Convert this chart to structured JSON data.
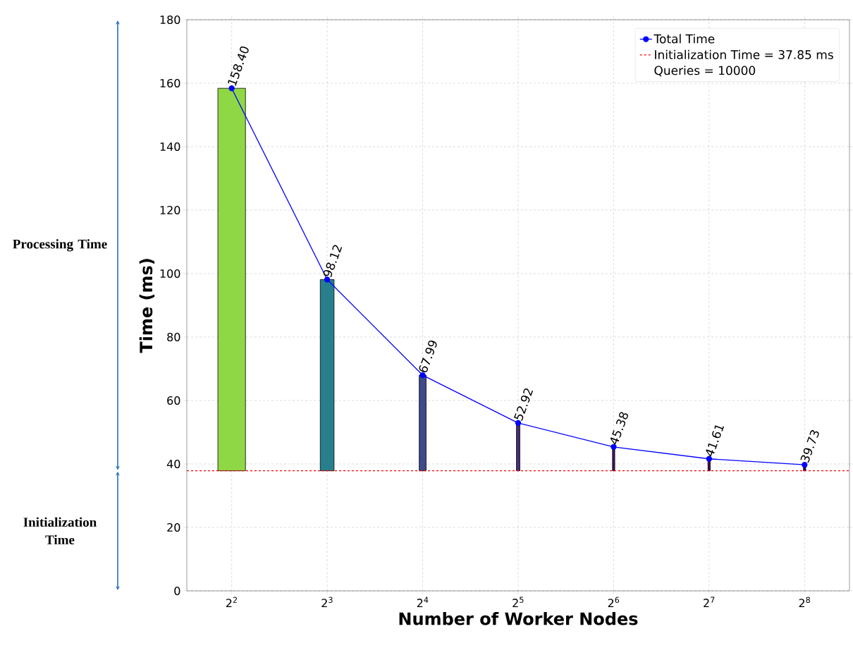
{
  "chart_data": {
    "type": "bar",
    "xlabel": "Number of Worker Nodes",
    "ylabel": "Time (ms)",
    "categories": [
      "2$^{2}$",
      "2$^{3}$",
      "2$^{4}$",
      "2$^{5}$",
      "2$^{6}$",
      "2$^{7}$",
      "2$^{8}$"
    ],
    "series": [
      {
        "base": [
          37.85,
          37.85,
          37.85,
          37.85,
          37.85,
          37.85,
          37.85
        ],
        "values": [
          120.55,
          60.27,
          30.14,
          15.07,
          7.53,
          3.76,
          1.88
        ],
        "colors": [
          "#8fd744",
          "#277f8e",
          "#3e4a89",
          "#472d7b",
          "#471365",
          "#440154",
          "#440154"
        ]
      },
      {
        "type": "line",
        "name": "Total Time",
        "color": "#0000ff",
        "marker": "circle",
        "values": [
          158.4,
          98.12,
          67.99,
          52.92,
          45.38,
          41.61,
          39.73
        ],
        "value_labels": [
          "158.40",
          "98.12",
          "67.99",
          "52.92",
          "45.38",
          "41.61",
          "39.73"
        ]
      }
    ],
    "ref_lines": [
      {
        "axis": "y",
        "value": 37.85,
        "label": "Initialization Time = 37.85 ms",
        "color": "#ff0000",
        "line_style": "dashed"
      }
    ],
    "annotations": [
      "Queries = 10000",
      "Processing Time",
      "Initialization Time"
    ],
    "ylim": [
      0,
      180
    ],
    "yticks": [
      0,
      20,
      40,
      60,
      80,
      100,
      120,
      140,
      160,
      180
    ],
    "grid": true,
    "legend": "top right"
  }
}
